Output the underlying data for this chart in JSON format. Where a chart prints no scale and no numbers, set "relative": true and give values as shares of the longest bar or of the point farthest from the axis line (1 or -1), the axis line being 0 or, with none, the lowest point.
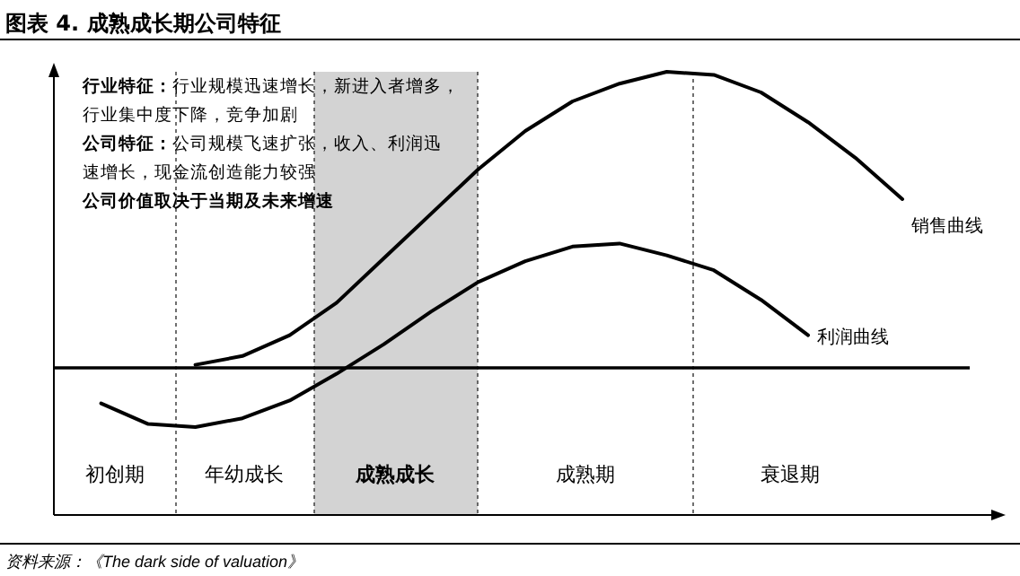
{
  "chart_data": {
    "type": "line",
    "relative": true,
    "title": "图表 4. 成熟成长期公司特征",
    "annotations": [
      "初创期",
      "年幼成长",
      "成熟成长",
      "成熟期",
      "衰退期",
      "行业特征：行业规模迅速增长，新进入者增多，",
      "行业集中度下降，竞争加剧",
      "公司特征：公司规模飞速扩张，收入、利润迅",
      "速增长，现金流创造能力较强",
      "公司价值取决于当期及未来增速",
      "资料来源：《The dark side of valuation》"
    ],
    "categories": [
      null,
      null,
      null,
      null,
      null,
      null,
      null,
      null,
      null,
      null,
      null,
      null,
      null,
      null,
      null,
      null,
      null,
      null,
      null,
      null,
      null
    ],
    "series": [
      {
        "name": "销售曲线",
        "color": "#000000",
        "values": [
          null,
          null,
          null,
          0.01,
          0.04,
          0.11,
          0.22,
          0.37,
          0.52,
          0.67,
          0.8,
          0.9,
          0.96,
          1,
          0.99,
          0.93,
          0.83,
          0.71,
          0.57,
          null,
          null
        ]
      },
      {
        "name": "利润曲线",
        "color": "#000000",
        "values": [
          null,
          -0.12,
          -0.19,
          -0.2,
          -0.17,
          -0.11,
          -0.02,
          0.08,
          0.19,
          0.29,
          0.36,
          0.41,
          0.42,
          0.38,
          0.33,
          0.23,
          0.11,
          null,
          null,
          null,
          null
        ]
      }
    ]
  }
}
